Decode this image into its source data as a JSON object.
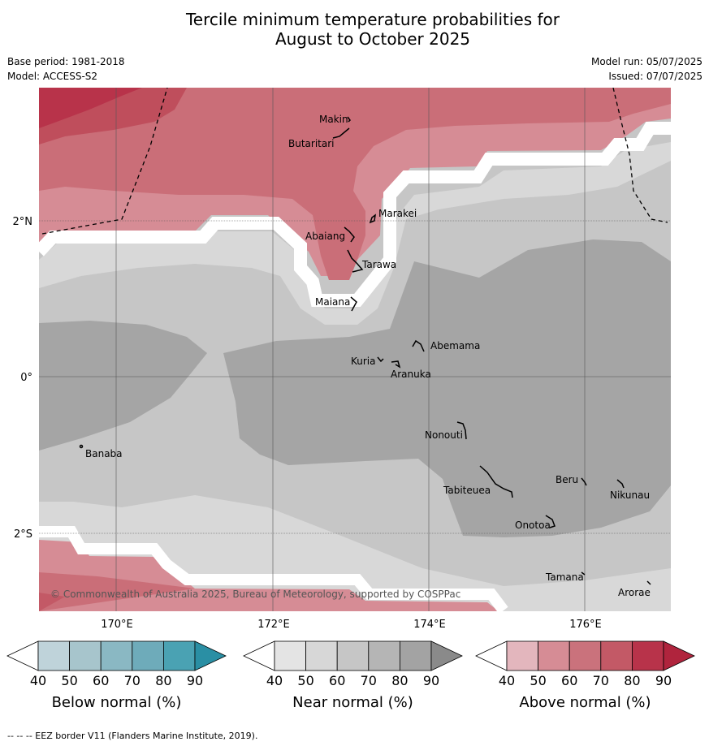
{
  "title_line1": "Tercile minimum temperature probabilities for",
  "title_line2": "August to October 2025",
  "meta": {
    "base_period": "Base period: 1981-2018",
    "model": "Model: ACCESS-S2",
    "model_run": "Model run: 05/07/2025",
    "issued": "Issued: 07/07/2025"
  },
  "lon_labels": [
    "170°E",
    "172°E",
    "174°E",
    "176°E"
  ],
  "lat_labels": [
    "2°N",
    "0°",
    "2°S"
  ],
  "places": [
    {
      "name": "Makin"
    },
    {
      "name": "Butaritari"
    },
    {
      "name": "Marakei"
    },
    {
      "name": "Abaiang"
    },
    {
      "name": "Tarawa"
    },
    {
      "name": "Maiana"
    },
    {
      "name": "Abemama"
    },
    {
      "name": "Kuria"
    },
    {
      "name": "Aranuka"
    },
    {
      "name": "Nonouti"
    },
    {
      "name": "Banaba"
    },
    {
      "name": "Beru"
    },
    {
      "name": "Tabiteuea"
    },
    {
      "name": "Nikunau"
    },
    {
      "name": "Onotoa"
    },
    {
      "name": "Tamana"
    },
    {
      "name": "Arorae"
    }
  ],
  "copyright": "© Commonwealth of Australia 2025, Bureau of Meteorology, supported by COSPPac",
  "colorbars": [
    {
      "title": "Below normal (%)",
      "ticks": [
        "40",
        "50",
        "60",
        "70",
        "80",
        "90"
      ],
      "colors": [
        "#bfd3da",
        "#a7c5cc",
        "#8ab8c3",
        "#6eabba",
        "#4aa2b3",
        "#2a8fa4"
      ]
    },
    {
      "title": "Near normal (%)",
      "ticks": [
        "40",
        "50",
        "60",
        "70",
        "80",
        "90"
      ],
      "colors": [
        "#e4e4e4",
        "#d7d7d7",
        "#c6c6c6",
        "#b5b5b5",
        "#a3a3a3",
        "#8a8a8a"
      ]
    },
    {
      "title": "Above normal (%)",
      "ticks": [
        "40",
        "50",
        "60",
        "70",
        "80",
        "90"
      ],
      "colors": [
        "#e3b6bd",
        "#d68c95",
        "#ca727c",
        "#c35966",
        "#b8334a",
        "#b0243d"
      ]
    }
  ],
  "footer": "--  --  -- EEZ border V11 (Flanders Marine Institute, 2019).",
  "colors": {
    "above_40": "#d68c95",
    "above_50": "#ca6e78",
    "above_60": "#c35966",
    "above_70": "#bf4556",
    "near_40": "#d8d8d8",
    "near_50": "#c6c6c6",
    "near_60": "#a5a5a5"
  }
}
